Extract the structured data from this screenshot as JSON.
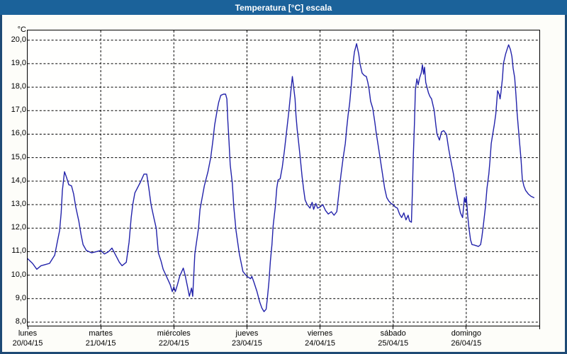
{
  "window": {
    "title": "Temperatura [°C] escala"
  },
  "colors": {
    "titlebar_bg": "#1b629a",
    "titlebar_text": "#ffffff",
    "window_border": "#1e4a75",
    "plot_bg": "#fffffe",
    "grid": "#000000",
    "line": "#2222aa",
    "text": "#000000"
  },
  "chart_data": {
    "type": "line",
    "title": "Temperatura [°C] escala",
    "xlabel": "",
    "ylabel": "°C",
    "y_unit": "°C",
    "ylim": [
      8,
      20
    ],
    "xlim_days": [
      0,
      7
    ],
    "grid": "dashed",
    "legend": "none",
    "y_ticks": [
      {
        "value": 20,
        "label": "20,0"
      },
      {
        "value": 19,
        "label": "19,0"
      },
      {
        "value": 18,
        "label": "18,0"
      },
      {
        "value": 17,
        "label": "17,0"
      },
      {
        "value": 16,
        "label": "16,0"
      },
      {
        "value": 15,
        "label": "15,0"
      },
      {
        "value": 14,
        "label": "14,0"
      },
      {
        "value": 13,
        "label": "13,0"
      },
      {
        "value": 12,
        "label": "12,0"
      },
      {
        "value": 11,
        "label": "11,0"
      },
      {
        "value": 10,
        "label": "10,0"
      },
      {
        "value": 9,
        "label": "9,0"
      },
      {
        "value": 8,
        "label": "8,0"
      }
    ],
    "x_days": [
      {
        "name": "lunes",
        "date": "20/04/15"
      },
      {
        "name": "martes",
        "date": "21/04/15"
      },
      {
        "name": "miércoles",
        "date": "22/04/15"
      },
      {
        "name": "jueves",
        "date": "23/04/15"
      },
      {
        "name": "viernes",
        "date": "24/04/15"
      },
      {
        "name": "sábado",
        "date": "25/04/15"
      },
      {
        "name": "domingo",
        "date": "26/04/15"
      }
    ],
    "series": [
      {
        "name": "Temperatura",
        "color": "#2222aa",
        "x_unit": "hours-from-monday-00:00",
        "points": [
          [
            0,
            10.7
          ],
          [
            1.6,
            10.5
          ],
          [
            3,
            10.25
          ],
          [
            4.4,
            10.4
          ],
          [
            5.8,
            10.45
          ],
          [
            7.2,
            10.5
          ],
          [
            8.9,
            10.85
          ],
          [
            9.8,
            11.45
          ],
          [
            10.5,
            11.9
          ],
          [
            11,
            12.65
          ],
          [
            11.4,
            13.6
          ],
          [
            12.1,
            14.4
          ],
          [
            12.8,
            14.15
          ],
          [
            13.5,
            13.85
          ],
          [
            14.4,
            13.8
          ],
          [
            15.1,
            13.45
          ],
          [
            15.8,
            12.9
          ],
          [
            16.8,
            12.3
          ],
          [
            17.5,
            11.75
          ],
          [
            18.2,
            11.3
          ],
          [
            19.3,
            11.05
          ],
          [
            21,
            10.95
          ],
          [
            22.6,
            11.0
          ],
          [
            24,
            11.05
          ],
          [
            25.2,
            10.9
          ],
          [
            26.6,
            11.0
          ],
          [
            27.7,
            11.15
          ],
          [
            28.9,
            10.85
          ],
          [
            30.1,
            10.55
          ],
          [
            31,
            10.4
          ],
          [
            32.4,
            10.55
          ],
          [
            33.3,
            11.4
          ],
          [
            34,
            12.45
          ],
          [
            34.5,
            13.0
          ],
          [
            35.2,
            13.5
          ],
          [
            37,
            13.95
          ],
          [
            38.2,
            14.3
          ],
          [
            39.1,
            14.3
          ],
          [
            39.8,
            13.7
          ],
          [
            40.5,
            13.0
          ],
          [
            41.5,
            12.4
          ],
          [
            42.2,
            12.0
          ],
          [
            42.9,
            10.95
          ],
          [
            43.8,
            10.6
          ],
          [
            44.5,
            10.25
          ],
          [
            45.2,
            10.05
          ],
          [
            46.1,
            9.8
          ],
          [
            46.8,
            9.6
          ],
          [
            47.5,
            9.3
          ],
          [
            48,
            9.5
          ],
          [
            48.5,
            9.3
          ],
          [
            49.2,
            9.6
          ],
          [
            49.9,
            9.95
          ],
          [
            51.1,
            10.3
          ],
          [
            51.7,
            10.0
          ],
          [
            52.5,
            9.5
          ],
          [
            53.1,
            9.1
          ],
          [
            53.8,
            9.45
          ],
          [
            54.2,
            9.1
          ],
          [
            54.9,
            10.9
          ],
          [
            56.1,
            12.0
          ],
          [
            56.6,
            12.8
          ],
          [
            58,
            13.8
          ],
          [
            59.2,
            14.4
          ],
          [
            60.1,
            15.0
          ],
          [
            60.8,
            15.7
          ],
          [
            61.4,
            16.4
          ],
          [
            62.2,
            17.0
          ],
          [
            62.7,
            17.35
          ],
          [
            63.4,
            17.65
          ],
          [
            64.3,
            17.7
          ],
          [
            65,
            17.7
          ],
          [
            65.4,
            17.5
          ],
          [
            65.7,
            16.6
          ],
          [
            66.1,
            15.7
          ],
          [
            66.5,
            14.7
          ],
          [
            67.2,
            13.9
          ],
          [
            67.7,
            12.9
          ],
          [
            68.4,
            11.9
          ],
          [
            69.5,
            10.9
          ],
          [
            70.7,
            10.15
          ],
          [
            72,
            9.95
          ],
          [
            73.2,
            9.85
          ],
          [
            73.6,
            9.95
          ],
          [
            74.3,
            9.7
          ],
          [
            75.3,
            9.3
          ],
          [
            76.2,
            8.85
          ],
          [
            76.9,
            8.6
          ],
          [
            77.6,
            8.45
          ],
          [
            78.3,
            8.55
          ],
          [
            78.7,
            9.0
          ],
          [
            79.2,
            9.7
          ],
          [
            79.7,
            10.6
          ],
          [
            80.2,
            11.3
          ],
          [
            80.6,
            12.1
          ],
          [
            81.3,
            12.9
          ],
          [
            81.8,
            13.7
          ],
          [
            82.2,
            14.05
          ],
          [
            82.9,
            14.1
          ],
          [
            83.6,
            14.6
          ],
          [
            84.3,
            15.3
          ],
          [
            85,
            16.1
          ],
          [
            85.7,
            16.9
          ],
          [
            86.4,
            17.8
          ],
          [
            86.9,
            18.45
          ],
          [
            87.8,
            17.5
          ],
          [
            88.1,
            16.8
          ],
          [
            88.5,
            16.2
          ],
          [
            89,
            15.6
          ],
          [
            89.5,
            15.0
          ],
          [
            90.1,
            14.2
          ],
          [
            90.6,
            13.65
          ],
          [
            91.1,
            13.2
          ],
          [
            91.8,
            13.0
          ],
          [
            92.7,
            12.85
          ],
          [
            93.4,
            13.1
          ],
          [
            93.9,
            12.8
          ],
          [
            94.6,
            13.05
          ],
          [
            95.2,
            12.85
          ],
          [
            96,
            12.9
          ],
          [
            96.9,
            13.0
          ],
          [
            97.8,
            12.75
          ],
          [
            98.7,
            12.6
          ],
          [
            99.7,
            12.7
          ],
          [
            100.6,
            12.55
          ],
          [
            101.5,
            12.7
          ],
          [
            102.2,
            13.5
          ],
          [
            102.9,
            14.3
          ],
          [
            103.6,
            15.0
          ],
          [
            104.3,
            15.6
          ],
          [
            104.7,
            16.2
          ],
          [
            105.2,
            16.8
          ],
          [
            105.7,
            17.3
          ],
          [
            106.4,
            18.3
          ],
          [
            106.8,
            19.0
          ],
          [
            107.3,
            19.5
          ],
          [
            108,
            19.85
          ],
          [
            108.7,
            19.4
          ],
          [
            109.1,
            19.0
          ],
          [
            109.8,
            18.6
          ],
          [
            110.5,
            18.5
          ],
          [
            111.2,
            18.45
          ],
          [
            111.7,
            18.2
          ],
          [
            112.1,
            17.9
          ],
          [
            112.6,
            17.4
          ],
          [
            113.3,
            17.1
          ],
          [
            114,
            16.5
          ],
          [
            114.4,
            16.1
          ],
          [
            115.1,
            15.5
          ],
          [
            115.8,
            14.9
          ],
          [
            116.5,
            14.3
          ],
          [
            117.2,
            13.7
          ],
          [
            117.9,
            13.3
          ],
          [
            118.6,
            13.15
          ],
          [
            119.3,
            13.05
          ],
          [
            120,
            13.0
          ],
          [
            120.7,
            12.9
          ],
          [
            121.4,
            12.85
          ],
          [
            122.1,
            12.6
          ],
          [
            122.8,
            12.45
          ],
          [
            123.5,
            12.65
          ],
          [
            124.2,
            12.35
          ],
          [
            124.9,
            12.55
          ],
          [
            125.4,
            12.3
          ],
          [
            126,
            12.25
          ],
          [
            126.3,
            13.5
          ],
          [
            126.6,
            15.0
          ],
          [
            127,
            16.5
          ],
          [
            127.3,
            17.9
          ],
          [
            127.8,
            18.35
          ],
          [
            128.2,
            18.1
          ],
          [
            128.7,
            18.4
          ],
          [
            129.2,
            18.6
          ],
          [
            129.6,
            18.95
          ],
          [
            130,
            18.55
          ],
          [
            130.3,
            18.85
          ],
          [
            130.7,
            18.2
          ],
          [
            131.6,
            17.75
          ],
          [
            132.1,
            17.6
          ],
          [
            132.6,
            17.5
          ],
          [
            133.5,
            17.0
          ],
          [
            134,
            16.4
          ],
          [
            134.4,
            16.0
          ],
          [
            135.2,
            15.75
          ],
          [
            135.9,
            16.1
          ],
          [
            136.6,
            16.15
          ],
          [
            137.5,
            16.0
          ],
          [
            138.2,
            15.4
          ],
          [
            138.9,
            14.9
          ],
          [
            139.8,
            14.3
          ],
          [
            140.5,
            13.7
          ],
          [
            141.2,
            13.2
          ],
          [
            142.1,
            12.65
          ],
          [
            142.8,
            12.45
          ],
          [
            143.2,
            13.0
          ],
          [
            143.4,
            13.3
          ],
          [
            143.7,
            13.1
          ],
          [
            144,
            13.35
          ],
          [
            144.5,
            12.5
          ],
          [
            144.9,
            12.0
          ],
          [
            145.4,
            11.5
          ],
          [
            145.9,
            11.3
          ],
          [
            146.6,
            11.28
          ],
          [
            147.3,
            11.25
          ],
          [
            148,
            11.22
          ],
          [
            148.7,
            11.3
          ],
          [
            149.1,
            11.6
          ],
          [
            149.6,
            12.1
          ],
          [
            150.3,
            12.9
          ],
          [
            150.8,
            13.7
          ],
          [
            151.4,
            14.3
          ],
          [
            151.8,
            14.9
          ],
          [
            152.2,
            15.6
          ],
          [
            152.7,
            16.0
          ],
          [
            153.2,
            16.4
          ],
          [
            153.7,
            16.85
          ],
          [
            154.3,
            17.85
          ],
          [
            154.8,
            17.7
          ],
          [
            155.1,
            17.5
          ],
          [
            155.4,
            17.8
          ],
          [
            155.9,
            18.4
          ],
          [
            156.2,
            19.0
          ],
          [
            156.9,
            19.4
          ],
          [
            157.5,
            19.65
          ],
          [
            157.9,
            19.8
          ],
          [
            158.5,
            19.6
          ],
          [
            159,
            19.3
          ],
          [
            159.4,
            18.8
          ],
          [
            159.9,
            18.4
          ],
          [
            160.3,
            17.7
          ],
          [
            160.7,
            16.9
          ],
          [
            161.2,
            16.1
          ],
          [
            161.6,
            15.5
          ],
          [
            162,
            14.9
          ],
          [
            162.4,
            14.1
          ],
          [
            162.9,
            13.8
          ],
          [
            163.5,
            13.6
          ],
          [
            164.4,
            13.45
          ],
          [
            165.3,
            13.35
          ],
          [
            166.2,
            13.3
          ]
        ]
      }
    ]
  }
}
